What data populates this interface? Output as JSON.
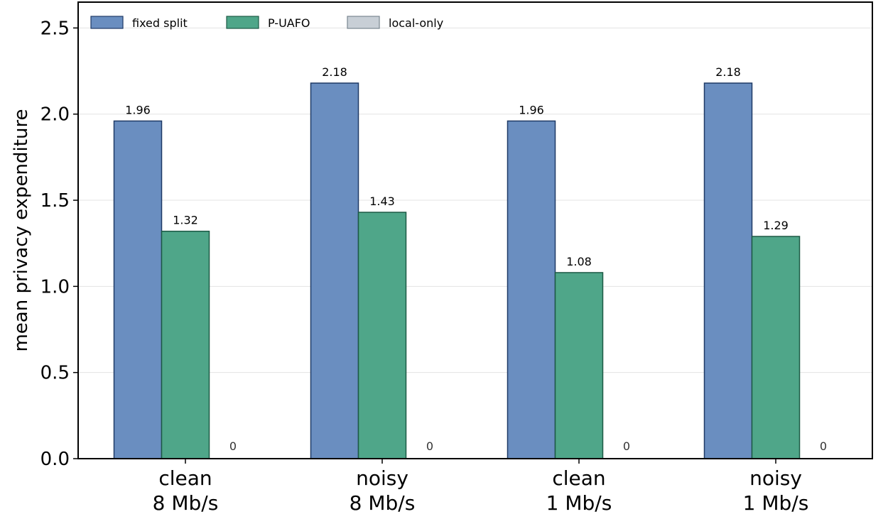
{
  "chart_data": {
    "type": "bar",
    "ylabel": "mean privacy expenditure",
    "ylim": [
      0,
      2.65
    ],
    "yticks": [
      "0.0",
      "0.5",
      "1.0",
      "1.5",
      "2.0",
      "2.5"
    ],
    "ytick_values": [
      0,
      0.5,
      1.0,
      1.5,
      2.0,
      2.5
    ],
    "grid": "horizontal",
    "legend_position": "top-left",
    "categories": [
      [
        "clean",
        "8 Mb/s"
      ],
      [
        "noisy",
        "8 Mb/s"
      ],
      [
        "clean",
        "1 Mb/s"
      ],
      [
        "noisy",
        "1 Mb/s"
      ]
    ],
    "series": [
      {
        "name": "fixed split",
        "values": [
          1.96,
          2.18,
          1.96,
          2.18
        ],
        "labels": [
          "1.96",
          "2.18",
          "1.96",
          "2.18"
        ],
        "color": "#6a8ec0",
        "edge": "#1f3a66"
      },
      {
        "name": "P-UAFO",
        "values": [
          1.32,
          1.43,
          1.08,
          1.29
        ],
        "labels": [
          "1.32",
          "1.43",
          "1.08",
          "1.29"
        ],
        "color": "#4fa689",
        "edge": "#1d5a45"
      },
      {
        "name": "local-only",
        "values": [
          0,
          0,
          0,
          0
        ],
        "labels": [
          "0",
          "0",
          "0",
          "0"
        ],
        "color": "#c8cfd6",
        "edge": "#7a8791"
      }
    ]
  }
}
